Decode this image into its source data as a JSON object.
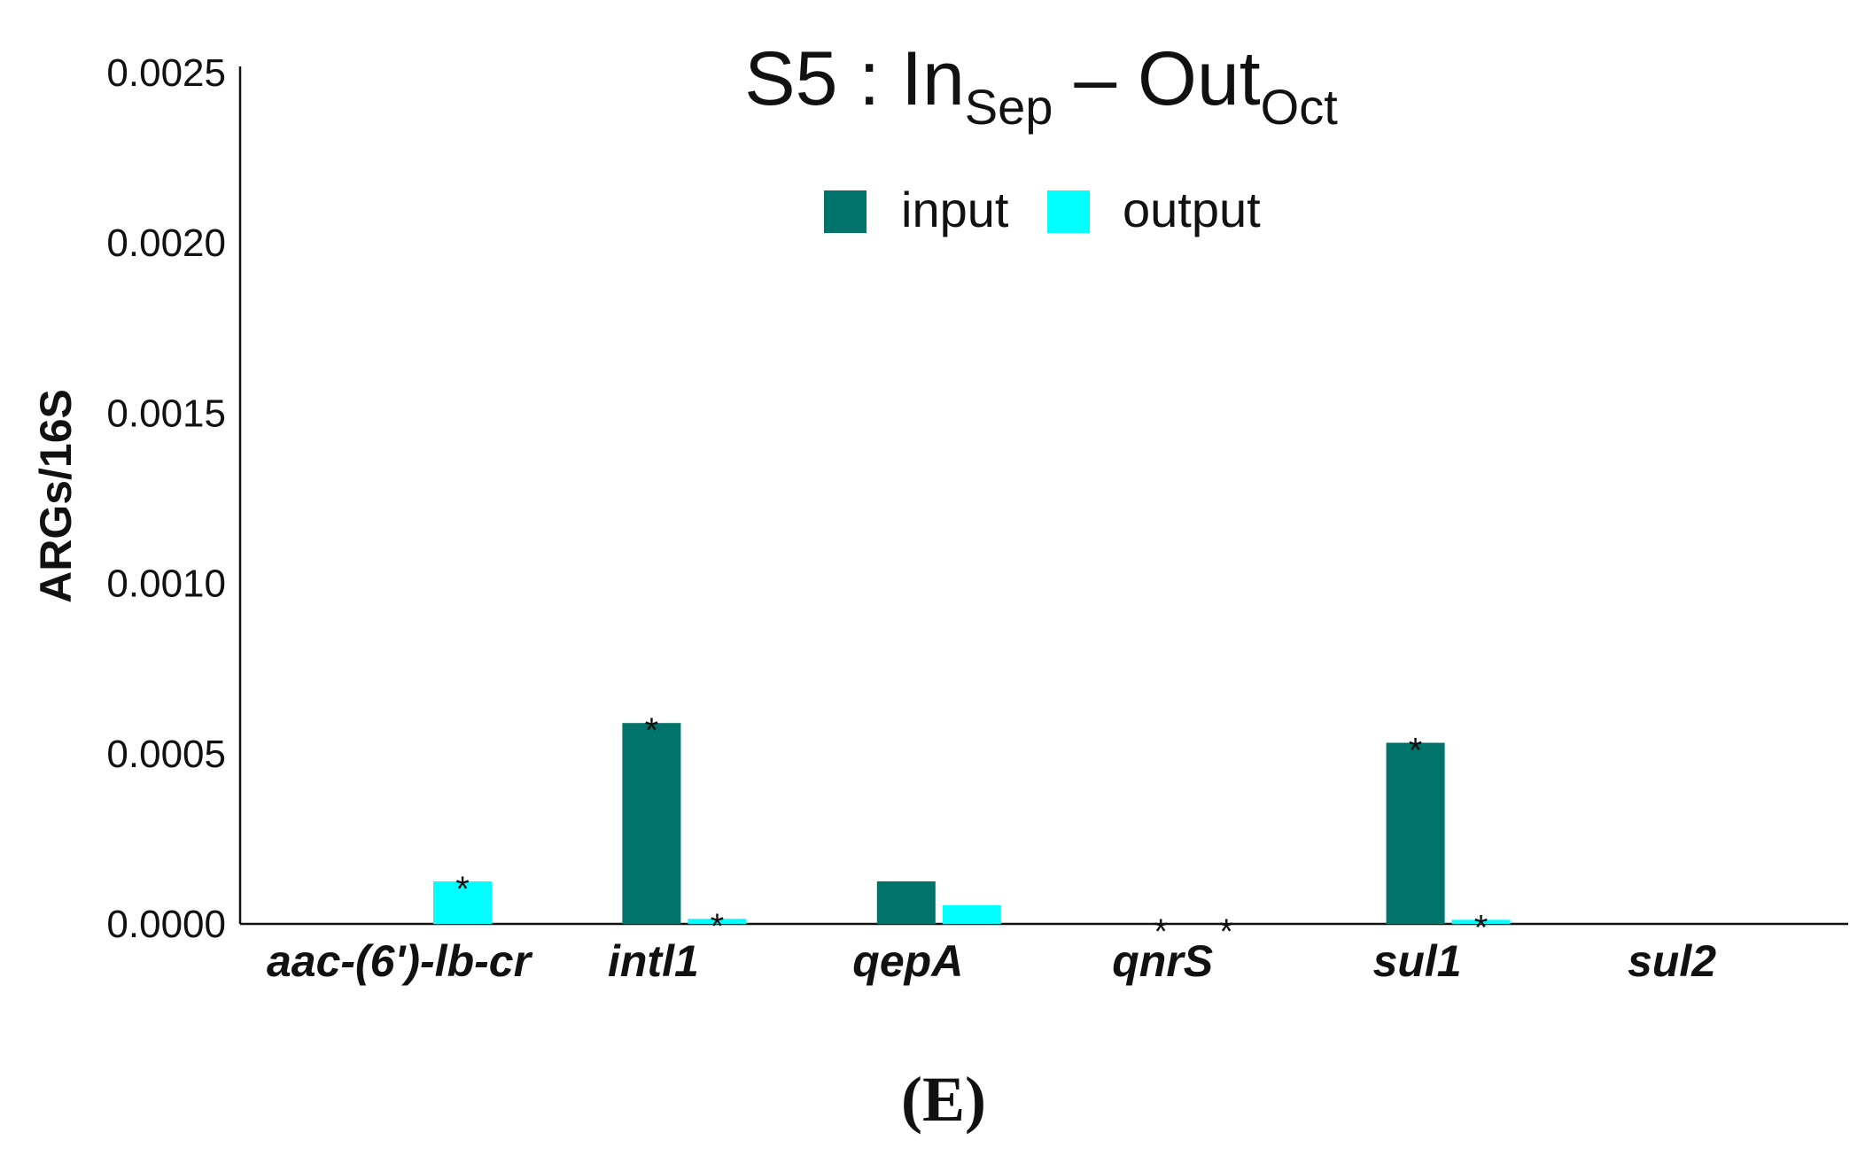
{
  "chart_data": {
    "type": "bar",
    "title": {
      "prefix": "S5 : In",
      "sub1": "Sep",
      "dash": " – Out",
      "sub2": "Oct"
    },
    "ylabel": "ARGs/16S",
    "xlabel": "",
    "ylim": [
      0,
      0.0025
    ],
    "yticks": [
      "0.0000",
      "0.0005",
      "0.0010",
      "0.0015",
      "0.0020",
      "0.0025"
    ],
    "categories": [
      "aac-(6')-lb-cr",
      "intl1",
      "qepA",
      "qnrS",
      "sul1",
      "sul2"
    ],
    "series": [
      {
        "name": "input",
        "color": "#00736b",
        "values": [
          0,
          0.00059,
          0.000125,
          0,
          0.000532,
          0
        ],
        "stars": [
          false,
          true,
          false,
          true,
          true,
          false
        ]
      },
      {
        "name": "output",
        "color": "#00ffff",
        "values": [
          0.000125,
          1.5e-05,
          5.5e-05,
          0,
          1.2e-05,
          0
        ],
        "stars": [
          true,
          true,
          false,
          true,
          true,
          false
        ]
      }
    ],
    "legend_position": "top-center",
    "grid": false,
    "star_symbol": "*"
  },
  "panel_label": "(E)"
}
